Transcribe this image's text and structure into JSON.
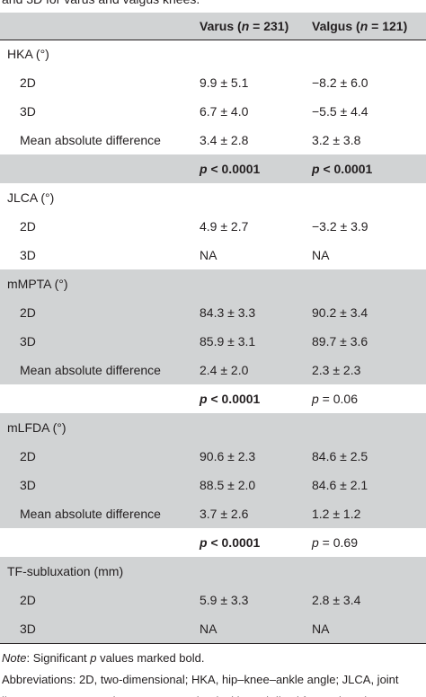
{
  "caption": "and 3D for varus and valgus knees.",
  "header": {
    "columns": [
      [
        {
          "text": "Varus ("
        },
        {
          "text": "n",
          "italic": true
        },
        {
          "text": " = 231)"
        }
      ],
      [
        {
          "text": "Valgus ("
        },
        {
          "text": "n",
          "italic": true
        },
        {
          "text": " = 121)"
        }
      ]
    ]
  },
  "rows": [
    {
      "label": "HKA (°)",
      "section": true,
      "shade": false
    },
    {
      "label": "2D",
      "cells": [
        "9.9 ± 5.1",
        "−8.2 ± 6.0"
      ],
      "shade": false
    },
    {
      "label": "3D",
      "cells": [
        "6.7 ± 4.0",
        "−5.5 ± 4.4"
      ],
      "shade": false
    },
    {
      "label": "Mean absolute difference",
      "cells": [
        "3.4 ± 2.8",
        "3.2 ± 3.8"
      ],
      "shade": false
    },
    {
      "cells": [
        [
          {
            "text": "p",
            "italic": true,
            "bold": true
          },
          {
            "text": " < 0.0001",
            "bold": true
          }
        ],
        [
          {
            "text": "p",
            "italic": true,
            "bold": true
          },
          {
            "text": " < 0.0001",
            "bold": true
          }
        ]
      ],
      "shade": true
    },
    {
      "label": "JLCA (°)",
      "section": true,
      "shade": false
    },
    {
      "label": "2D",
      "cells": [
        "4.9 ± 2.7",
        "−3.2 ± 3.9"
      ],
      "shade": false
    },
    {
      "label": "3D",
      "cells": [
        "NA",
        "NA"
      ],
      "shade": false
    },
    {
      "label": "mMPTA (°)",
      "section": true,
      "shade": true
    },
    {
      "label": "2D",
      "cells": [
        "84.3 ± 3.3",
        "90.2 ± 3.4"
      ],
      "shade": true
    },
    {
      "label": "3D",
      "cells": [
        "85.9 ± 3.1",
        "89.7 ± 3.6"
      ],
      "shade": true
    },
    {
      "label": "Mean absolute difference",
      "cells": [
        "2.4 ± 2.0",
        "2.3 ± 2.3"
      ],
      "shade": true
    },
    {
      "cells": [
        [
          {
            "text": "p",
            "italic": true,
            "bold": true
          },
          {
            "text": " < 0.0001",
            "bold": true
          }
        ],
        [
          {
            "text": "p",
            "italic": true
          },
          {
            "text": " = 0.06"
          }
        ]
      ],
      "shade": false
    },
    {
      "label": "mLFDA (°)",
      "section": true,
      "shade": true
    },
    {
      "label": "2D",
      "cells": [
        "90.6 ± 2.3",
        "84.6 ± 2.5"
      ],
      "shade": true
    },
    {
      "label": "3D",
      "cells": [
        "88.5 ± 2.0",
        "84.6 ± 2.1"
      ],
      "shade": true
    },
    {
      "label": "Mean absolute difference",
      "cells": [
        "3.7 ± 2.6",
        "1.2 ± 1.2"
      ],
      "shade": true
    },
    {
      "cells": [
        [
          {
            "text": "p",
            "italic": true,
            "bold": true
          },
          {
            "text": " < 0.0001",
            "bold": true
          }
        ],
        [
          {
            "text": "p",
            "italic": true
          },
          {
            "text": " = 0.69"
          }
        ]
      ],
      "shade": false
    },
    {
      "label": "TF-subluxation (mm)",
      "section": true,
      "shade": true
    },
    {
      "label": "2D",
      "cells": [
        "5.9 ± 3.3",
        "2.8 ± 3.4"
      ],
      "shade": true
    },
    {
      "label": "3D",
      "cells": [
        "NA",
        "NA"
      ],
      "shade": true
    }
  ],
  "notes": [
    [
      {
        "text": "Note",
        "italic": true
      },
      {
        "text": ": Significant "
      },
      {
        "text": "p",
        "italic": true
      },
      {
        "text": " values marked bold."
      }
    ],
    [
      {
        "text": "Abbreviations: 2D, two-dimensional; HKA, hip–knee–ankle angle; JLCA, joint"
      }
    ],
    [
      {
        "text": "line convergence angle; mLFDA, mechanical lateral distal femoral angle;"
      }
    ]
  ]
}
